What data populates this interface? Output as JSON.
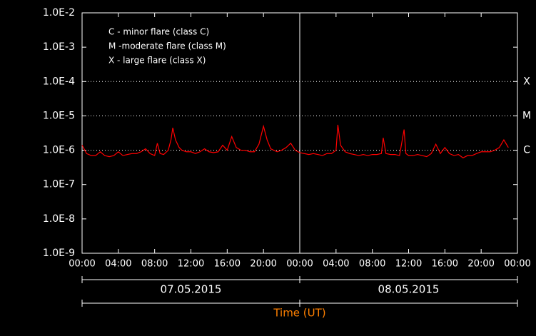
{
  "chart_data": {
    "type": "line",
    "log_y": true,
    "xlabel": "Time (UT)",
    "dates": [
      "07.05.2015",
      "08.05.2015"
    ],
    "notes": [
      "C - minor flare (class C)",
      "M -moderate flare (class M)",
      "X - large flare (class X)"
    ],
    "levels": [
      {
        "value": 0.0001,
        "label": "X"
      },
      {
        "value": 1e-05,
        "label": "M"
      },
      {
        "value": 1e-06,
        "label": "C"
      }
    ],
    "xlim": [
      0,
      48
    ],
    "ylim": [
      1e-09,
      0.01
    ],
    "xticks": [
      {
        "value": 0,
        "label": "00:00"
      },
      {
        "value": 4,
        "label": "04:00"
      },
      {
        "value": 8,
        "label": "08:00"
      },
      {
        "value": 12,
        "label": "12:00"
      },
      {
        "value": 16,
        "label": "16:00"
      },
      {
        "value": 20,
        "label": "20:00"
      },
      {
        "value": 24,
        "label": "00:00"
      },
      {
        "value": 28,
        "label": "04:00"
      },
      {
        "value": 32,
        "label": "08:00"
      },
      {
        "value": 36,
        "label": "12:00"
      },
      {
        "value": 40,
        "label": "16:00"
      },
      {
        "value": 44,
        "label": "20:00"
      },
      {
        "value": 48,
        "label": "00:00"
      }
    ],
    "yticks": [
      {
        "value": 0.01,
        "label": "1.0E-2"
      },
      {
        "value": 0.001,
        "label": "1.0E-3"
      },
      {
        "value": 0.0001,
        "label": "1.0E-4"
      },
      {
        "value": 1e-05,
        "label": "1.0E-5"
      },
      {
        "value": 1e-06,
        "label": "1.0E-6"
      },
      {
        "value": 1e-07,
        "label": "1.0E-7"
      },
      {
        "value": 1e-08,
        "label": "1.0E-8"
      },
      {
        "value": 1e-09,
        "label": "1.0E-9"
      }
    ],
    "x": [
      0,
      0.5,
      1,
      1.5,
      2,
      2.5,
      3,
      3.5,
      4,
      4.5,
      5,
      5.5,
      6,
      6.5,
      7,
      7.5,
      8,
      8.3,
      8.6,
      9,
      9.5,
      9.8,
      10,
      10.3,
      10.7,
      11,
      11.5,
      12,
      12.5,
      13,
      13.5,
      14,
      14.5,
      15,
      15.5,
      16,
      16.5,
      17,
      17.5,
      18,
      18.5,
      19,
      19.5,
      20,
      20.4,
      20.8,
      21.5,
      22,
      22.5,
      23,
      23.5,
      24,
      24.5,
      25,
      25.5,
      26,
      26.5,
      27,
      27.5,
      28,
      28.2,
      28.5,
      29,
      29.5,
      30,
      30.5,
      31,
      31.5,
      32,
      32.5,
      33,
      33.2,
      33.5,
      34,
      34.5,
      35,
      35.5,
      35.7,
      36,
      36.5,
      37,
      37.5,
      38,
      38.5,
      39,
      39.5,
      40,
      40.5,
      41,
      41.5,
      42,
      42.5,
      43,
      43.5,
      44,
      44.5,
      45,
      45.5,
      46,
      46.5,
      47
    ],
    "series": [
      {
        "color": "#ff0000",
        "values": [
          1.4e-06,
          8e-07,
          7e-07,
          7e-07,
          9e-07,
          7e-07,
          6.5e-07,
          7e-07,
          9e-07,
          7e-07,
          7.5e-07,
          8e-07,
          8e-07,
          9e-07,
          1.1e-06,
          8e-07,
          7e-07,
          1.6e-06,
          8e-07,
          7.5e-07,
          1e-06,
          2e-06,
          4.5e-06,
          2e-06,
          1.2e-06,
          1e-06,
          9e-07,
          9e-07,
          8e-07,
          9e-07,
          1.1e-06,
          9e-07,
          8.5e-07,
          9e-07,
          1.4e-06,
          1e-06,
          2.5e-06,
          1.2e-06,
          1e-06,
          1e-06,
          9e-07,
          9e-07,
          1.5e-06,
          5e-06,
          2e-06,
          1.1e-06,
          9e-07,
          1e-06,
          1.2e-06,
          1.6e-06,
          1e-06,
          8.5e-07,
          8e-07,
          7.5e-07,
          8e-07,
          7.5e-07,
          7e-07,
          8e-07,
          8e-07,
          1e-06,
          5.5e-06,
          1.4e-06,
          9e-07,
          8e-07,
          7.5e-07,
          7e-07,
          7.5e-07,
          7e-07,
          7.5e-07,
          7.5e-07,
          8e-07,
          2.3e-06,
          8e-07,
          7.5e-07,
          7.5e-07,
          7e-07,
          4e-06,
          8e-07,
          7e-07,
          7e-07,
          7.5e-07,
          7e-07,
          6.5e-07,
          8e-07,
          1.5e-06,
          8e-07,
          1.2e-06,
          8e-07,
          7e-07,
          7.5e-07,
          6e-07,
          7e-07,
          7e-07,
          8e-07,
          9e-07,
          9e-07,
          9e-07,
          1e-06,
          1.2e-06,
          2e-06,
          1.2e-06
        ]
      }
    ]
  }
}
